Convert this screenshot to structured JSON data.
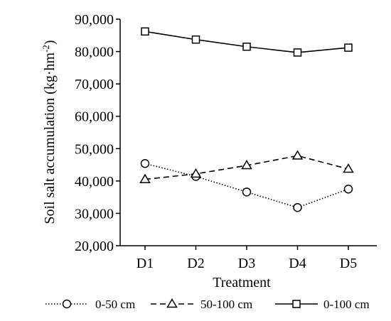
{
  "chart_data": {
    "type": "line",
    "title": "",
    "xlabel": "Treatment",
    "ylabel": "Soil salt accumulation (kg·hm⁻²)",
    "categories": [
      "D1",
      "D2",
      "D3",
      "D4",
      "D5"
    ],
    "ylim": [
      20000,
      90000
    ],
    "yticks": [
      20000,
      30000,
      40000,
      50000,
      60000,
      70000,
      80000,
      90000
    ],
    "ytick_labels": [
      "20,000",
      "30,000",
      "40,000",
      "50,000",
      "60,000",
      "70,000",
      "80,000",
      "90,000"
    ],
    "grid": false,
    "legend_position": "bottom",
    "series": [
      {
        "name": "0-50 cm",
        "marker": "circle",
        "line_style": "dotted",
        "values": [
          45400,
          41400,
          36600,
          31800,
          37500
        ]
      },
      {
        "name": "50-100 cm",
        "marker": "triangle",
        "line_style": "dashed",
        "values": [
          40500,
          42200,
          44800,
          47800,
          43700
        ]
      },
      {
        "name": "0-100 cm",
        "marker": "square",
        "line_style": "solid",
        "values": [
          86200,
          83700,
          81500,
          79700,
          81200
        ]
      }
    ]
  }
}
